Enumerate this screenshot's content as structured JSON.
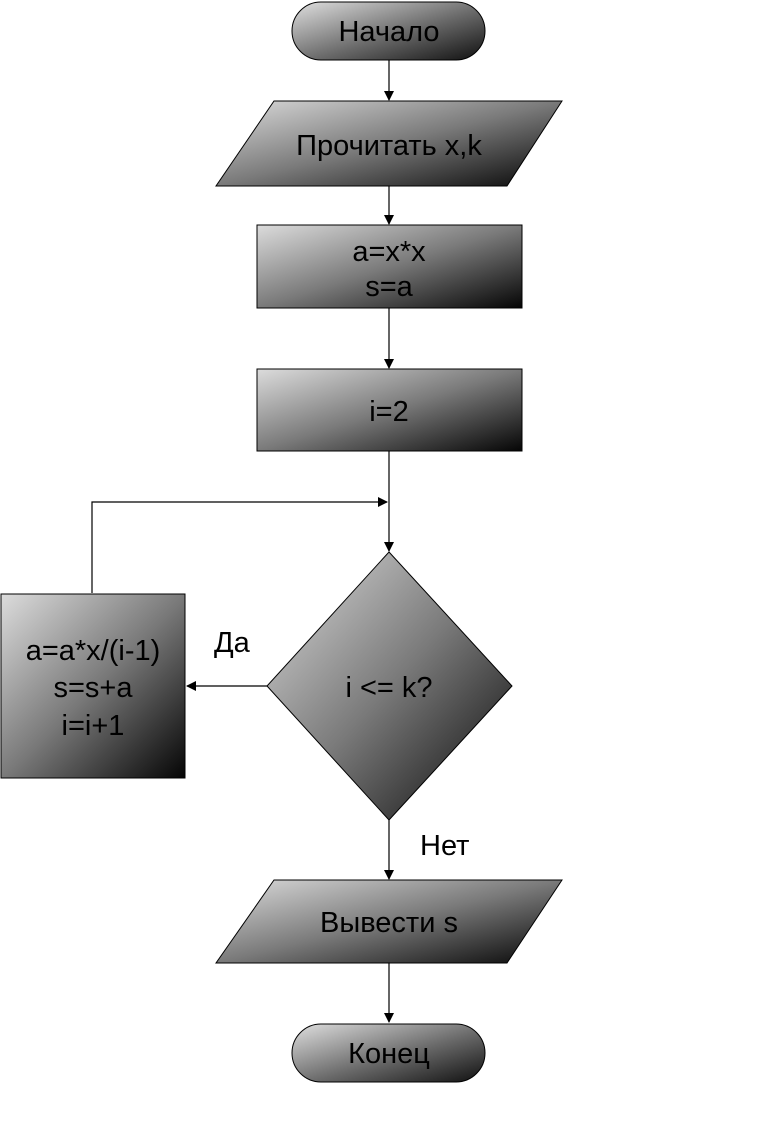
{
  "diagram": {
    "nodes": {
      "start": {
        "text": "Начало"
      },
      "input": {
        "text": "Прочитать x,k"
      },
      "init1": {
        "lines": [
          "a=x*x",
          "s=a"
        ]
      },
      "init2": {
        "text": "i=2"
      },
      "cond": {
        "text": "i <= k?"
      },
      "body": {
        "lines": [
          "a=a*x/(i-1)",
          "s=s+a",
          "i=i+1"
        ]
      },
      "output": {
        "text": "Вывести s"
      },
      "end": {
        "text": "Конец"
      }
    },
    "edge_labels": {
      "yes": "Да",
      "no": "Нет"
    }
  }
}
